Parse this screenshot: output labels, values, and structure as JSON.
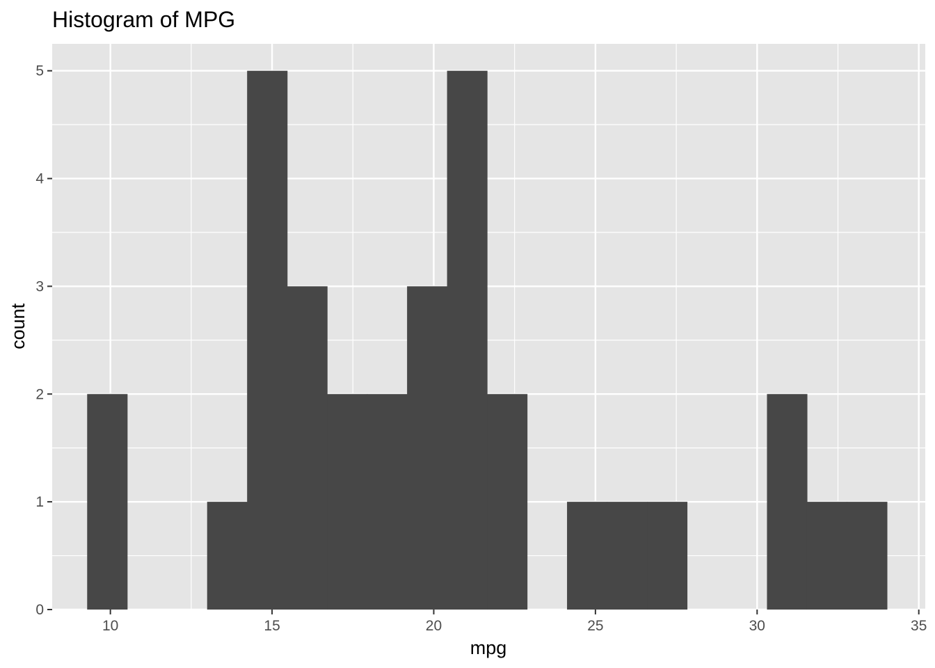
{
  "chart_data": {
    "type": "bar",
    "subtype": "histogram",
    "title": "Histogram of MPG",
    "xlabel": "mpg",
    "ylabel": "count",
    "xlim": [
      8.2,
      35.2
    ],
    "ylim": [
      0,
      5.25
    ],
    "x_ticks": [
      10,
      15,
      20,
      25,
      30,
      35
    ],
    "y_ticks": [
      0,
      1,
      2,
      3,
      4,
      5
    ],
    "bin_width": 1.2367,
    "bins": [
      {
        "start": 9.2817,
        "end": 10.5183,
        "count": 2
      },
      {
        "start": 10.5183,
        "end": 11.755,
        "count": 0
      },
      {
        "start": 11.755,
        "end": 12.9917,
        "count": 0
      },
      {
        "start": 12.9917,
        "end": 14.2283,
        "count": 1
      },
      {
        "start": 14.2283,
        "end": 15.465,
        "count": 5
      },
      {
        "start": 15.465,
        "end": 16.7017,
        "count": 3
      },
      {
        "start": 16.7017,
        "end": 17.9383,
        "count": 2
      },
      {
        "start": 17.9383,
        "end": 19.175,
        "count": 2
      },
      {
        "start": 19.175,
        "end": 20.4117,
        "count": 3
      },
      {
        "start": 20.4117,
        "end": 21.6483,
        "count": 5
      },
      {
        "start": 21.6483,
        "end": 22.885,
        "count": 2
      },
      {
        "start": 22.885,
        "end": 24.1217,
        "count": 0
      },
      {
        "start": 24.1217,
        "end": 25.3583,
        "count": 1
      },
      {
        "start": 25.3583,
        "end": 26.595,
        "count": 1
      },
      {
        "start": 26.595,
        "end": 27.8317,
        "count": 1
      },
      {
        "start": 27.8317,
        "end": 29.0683,
        "count": 0
      },
      {
        "start": 29.0683,
        "end": 30.305,
        "count": 0
      },
      {
        "start": 30.305,
        "end": 31.5417,
        "count": 2
      },
      {
        "start": 31.5417,
        "end": 32.7783,
        "count": 1
      },
      {
        "start": 32.7783,
        "end": 34.015,
        "count": 1
      }
    ],
    "grid": true,
    "colors": {
      "panel": "#e5e5e5",
      "grid": "#ffffff",
      "bar": "#474747",
      "tick": "#333333",
      "tick_label": "#4d4d4d"
    }
  }
}
